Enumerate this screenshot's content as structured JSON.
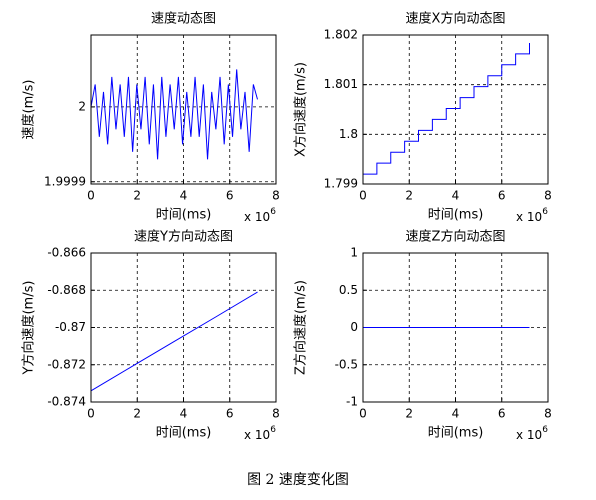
{
  "charts": [
    {
      "type": "line",
      "title": "速度动态图",
      "x_label": "时间(ms)",
      "y_label": "速度(m/s)",
      "x_multiplier": "x 10",
      "x_multiplier_exponent": "6",
      "xlim": [
        0,
        8
      ],
      "xticks": [
        0,
        2,
        4,
        6,
        8
      ],
      "ylim": [
        1.999897,
        2.000096
      ],
      "yticks": [
        1.9999,
        2
      ],
      "grid": true,
      "color": "#0000ff",
      "x": [
        0,
        0.18,
        0.36,
        0.54,
        0.72,
        0.9,
        1.08,
        1.26,
        1.44,
        1.62,
        1.8,
        1.98,
        2.16,
        2.34,
        2.52,
        2.7,
        2.88,
        3.06,
        3.24,
        3.42,
        3.6,
        3.78,
        3.96,
        4.14,
        4.32,
        4.5,
        4.68,
        4.86,
        5.04,
        5.22,
        5.4,
        5.58,
        5.76,
        5.94,
        6.12,
        6.3,
        6.48,
        6.66,
        6.84,
        7.02,
        7.2
      ],
      "values": [
        2,
        2.00003,
        1.99996,
        2.00002,
        1.99995,
        2.00004,
        1.99997,
        2.00003,
        1.99996,
        2.00004,
        1.99994,
        2.00003,
        1.99997,
        2.00004,
        1.99995,
        2.00003,
        1.99993,
        2.00004,
        1.99996,
        2.00003,
        1.99997,
        2.00004,
        1.99995,
        2.00002,
        1.99996,
        2.00004,
        1.99996,
        2.00003,
        1.99993,
        2.00002,
        1.99997,
        2.00004,
        1.99995,
        2.00003,
        1.99996,
        2.00005,
        1.99997,
        2.00002,
        1.99994,
        2.00003,
        2.00001
      ]
    },
    {
      "type": "line",
      "title": "速度X方向动态图",
      "x_label": "时间(ms)",
      "y_label": "X方向速度(m/s)",
      "x_multiplier": "x 10",
      "x_multiplier_exponent": "6",
      "xlim": [
        0,
        8
      ],
      "xticks": [
        0,
        2,
        4,
        6,
        8
      ],
      "ylim": [
        1.799,
        1.802
      ],
      "yticks": [
        1.799,
        1.8,
        1.801,
        1.802
      ],
      "grid": true,
      "color": "#0000ff",
      "x": [
        0,
        0.6,
        0.6,
        1.2,
        1.2,
        1.8,
        1.8,
        2.4,
        2.4,
        3,
        3,
        3.6,
        3.6,
        4.2,
        4.2,
        4.8,
        4.8,
        5.4,
        5.4,
        6,
        6,
        6.6,
        6.6,
        7.2,
        7.2
      ],
      "values": [
        1.7992,
        1.7992,
        1.79942,
        1.79942,
        1.79964,
        1.79964,
        1.79986,
        1.79986,
        1.80008,
        1.80008,
        1.8003,
        1.8003,
        1.80052,
        1.80052,
        1.80074,
        1.80074,
        1.80096,
        1.80096,
        1.80118,
        1.80118,
        1.8014,
        1.8014,
        1.80162,
        1.80162,
        1.80184
      ]
    },
    {
      "type": "line",
      "title": "速度Y方向动态图",
      "x_label": "时间(ms)",
      "y_label": "Y方向速度(m/s)",
      "x_multiplier": "x 10",
      "x_multiplier_exponent": "6",
      "xlim": [
        0,
        8
      ],
      "xticks": [
        0,
        2,
        4,
        6,
        8
      ],
      "ylim": [
        -0.874,
        -0.866
      ],
      "yticks": [
        -0.874,
        -0.872,
        -0.87,
        -0.868,
        -0.866
      ],
      "grid": true,
      "color": "#0000ff",
      "x": [
        0,
        1.8,
        3.6,
        5.4,
        7.2
      ],
      "values": [
        -0.8734,
        -0.87207,
        -0.87075,
        -0.86943,
        -0.8681
      ]
    },
    {
      "type": "line",
      "title": "速度Z方向动态图",
      "x_label": "时间(ms)",
      "y_label": "Z方向速度(m/s)",
      "x_multiplier": "x 10",
      "x_multiplier_exponent": "6",
      "xlim": [
        0,
        8
      ],
      "xticks": [
        0,
        2,
        4,
        6,
        8
      ],
      "ylim": [
        -1,
        1
      ],
      "yticks": [
        -1,
        -0.5,
        0,
        0.5,
        1
      ],
      "grid": true,
      "color": "#0000ff",
      "x": [
        0,
        7.2
      ],
      "values": [
        0,
        0
      ]
    }
  ],
  "caption": "图 2  速度变化图"
}
